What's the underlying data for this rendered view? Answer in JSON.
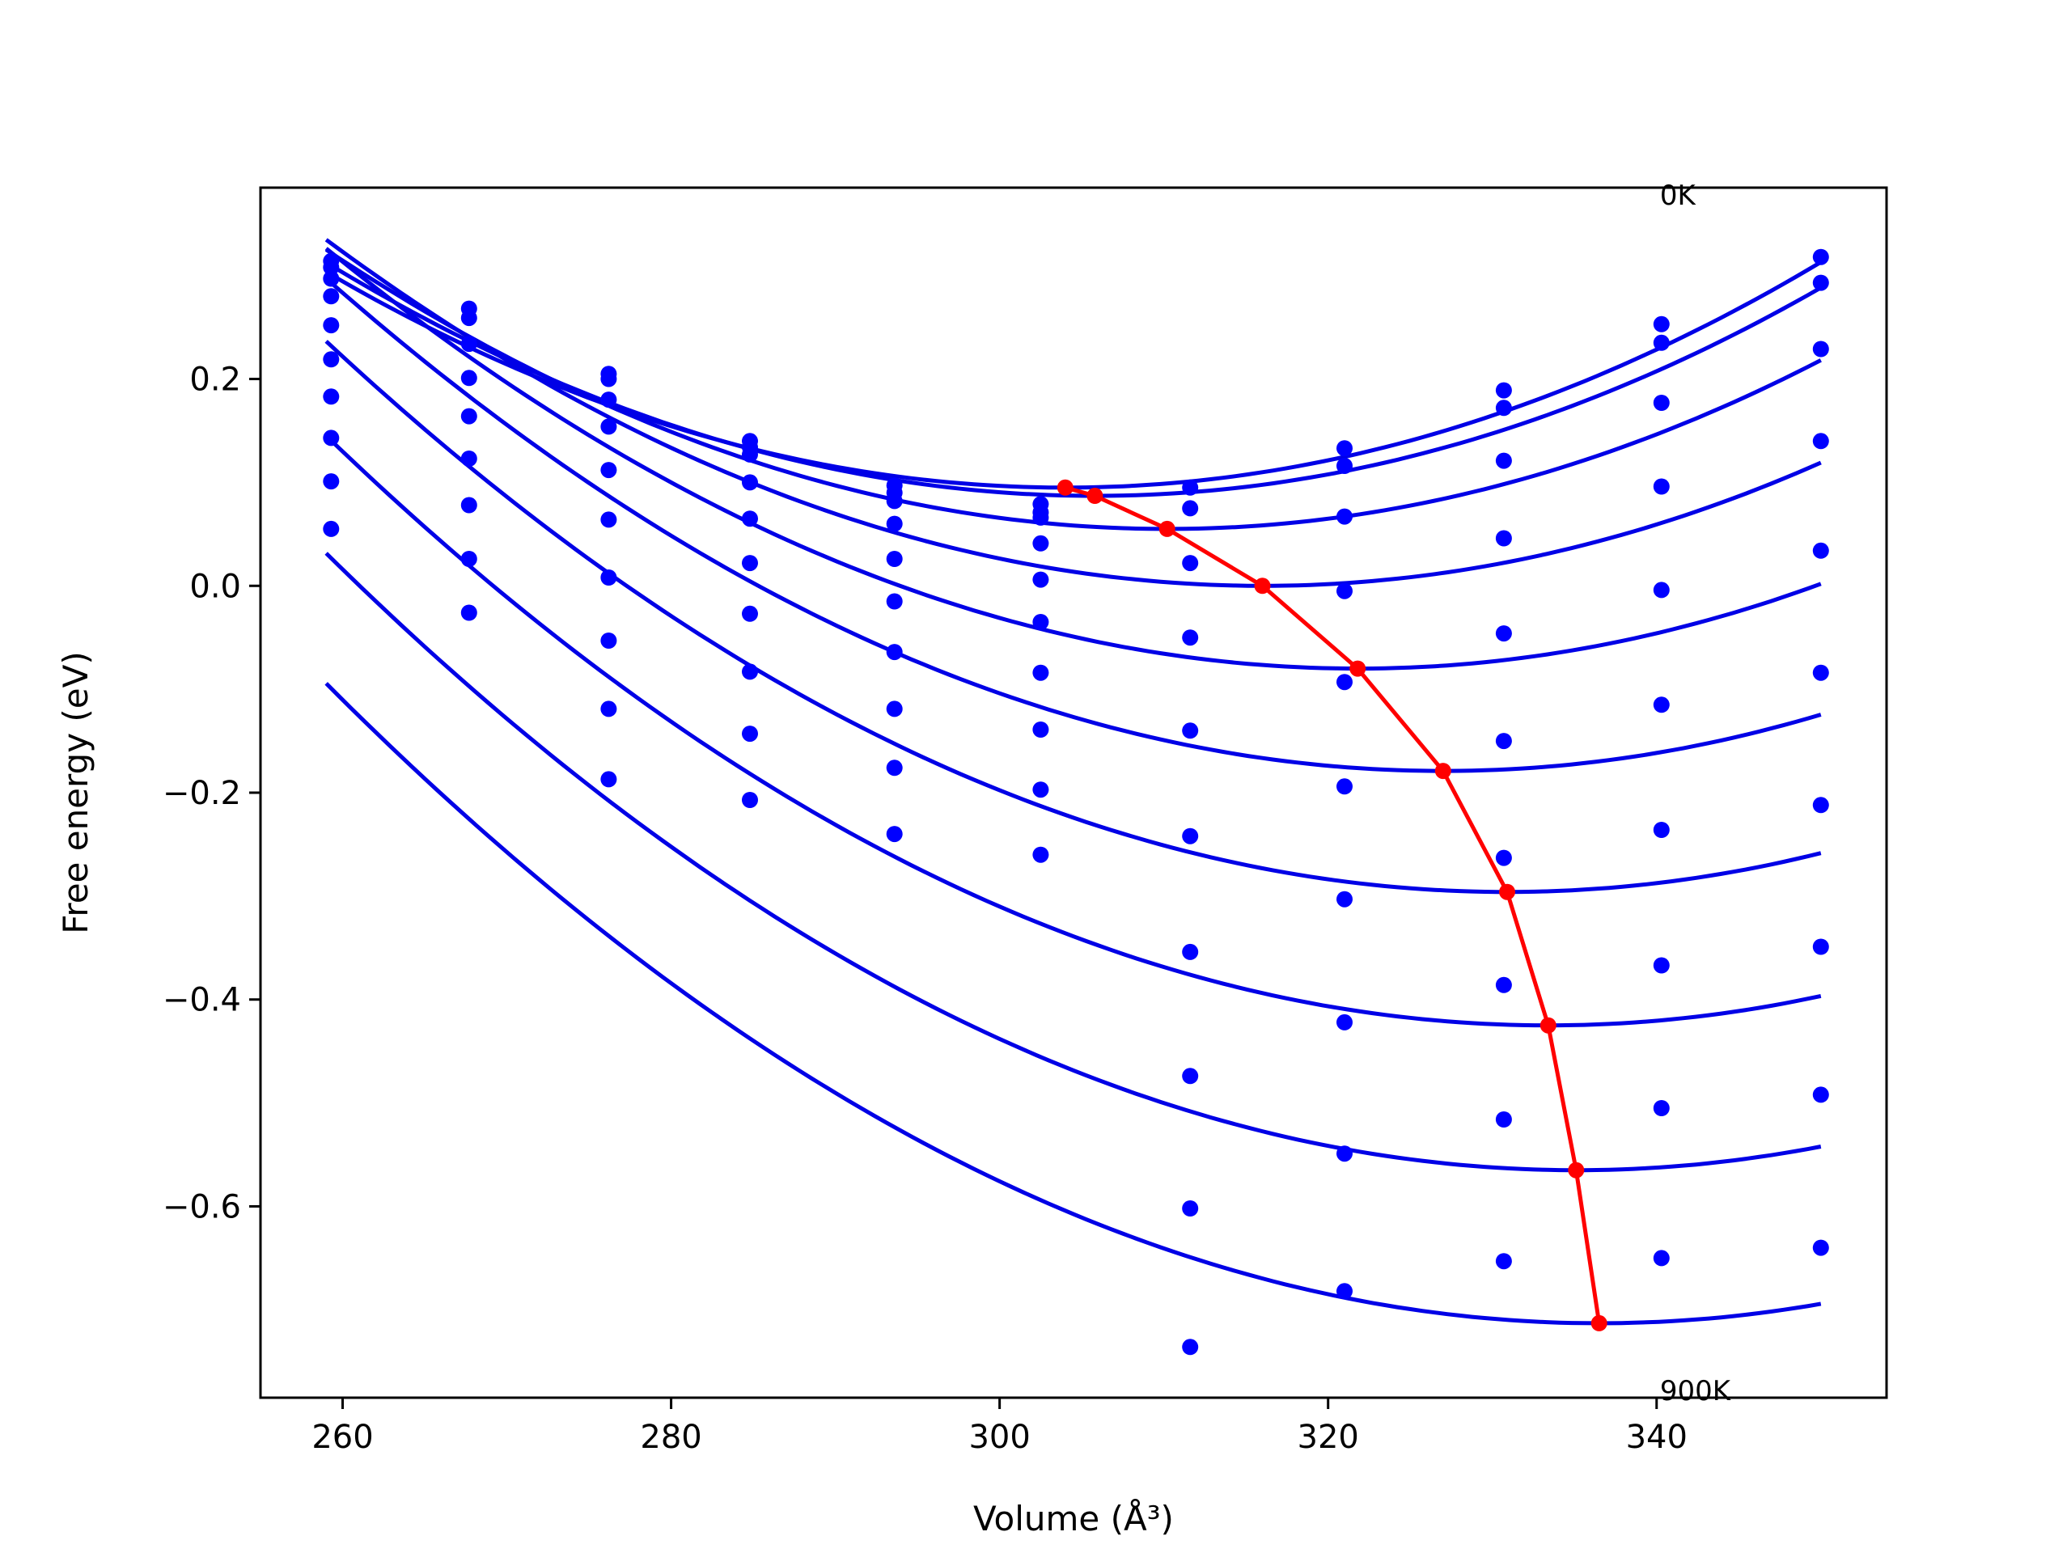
{
  "chart_data": {
    "type": "scatter",
    "xlabel": "Volume (Å³)",
    "ylabel": "Free energy (eV)",
    "xlim": [
      255,
      354
    ],
    "ylim": [
      -0.785,
      0.385
    ],
    "xticks": [
      260,
      280,
      300,
      320,
      340
    ],
    "yticks": [
      0.2,
      0.0,
      -0.2,
      -0.4,
      -0.6
    ],
    "xtick_labels": [
      "260",
      "280",
      "300",
      "320",
      "340"
    ],
    "ytick_labels": [
      "0.2",
      "0.0",
      "−0.2",
      "−0.4",
      "−0.6"
    ],
    "grid": false,
    "annotations": [
      {
        "text": "0K",
        "x": 340.2,
        "y": 0.378
      },
      {
        "text": "900K",
        "x": 340.2,
        "y": -0.778
      }
    ],
    "volumes": [
      259.3,
      267.7,
      276.2,
      284.8,
      293.6,
      302.5,
      311.6,
      321.0,
      330.7,
      340.3,
      350.0
    ],
    "series": [
      {
        "points": [
          0.314,
          0.268,
          0.205,
          0.14,
          0.097,
          0.079,
          0.095,
          0.133,
          0.189,
          0.253,
          0.318
        ],
        "fit": {
          "a": 0.000103,
          "vmin": 304.0,
          "emin": 0.095,
          "range": [
            259.0,
            350.0
          ]
        }
      },
      {
        "points": [
          0.308,
          0.259,
          0.2,
          0.134,
          0.09,
          0.071,
          0.075,
          0.116,
          0.172,
          0.235,
          0.293
        ],
        "fit": {
          "a": 0.000103,
          "vmin": 305.8,
          "emin": 0.087,
          "range": [
            259.0,
            350.0
          ]
        }
      },
      {
        "points": [
          0.297,
          0.234,
          0.18,
          0.127,
          0.082,
          0.066,
          0.022,
          0.067,
          0.121,
          0.177,
          0.229
        ],
        "fit": {
          "a": 0.000103,
          "vmin": 310.2,
          "emin": 0.055,
          "range": [
            259.0,
            350.0
          ]
        }
      },
      {
        "points": [
          0.28,
          0.201,
          0.154,
          0.1,
          0.06,
          0.041,
          -0.05,
          -0.005,
          0.046,
          0.096,
          0.14
        ],
        "fit": {
          "a": 0.000103,
          "vmin": 316.0,
          "emin": 0.0,
          "range": [
            259.0,
            350.0
          ]
        }
      },
      {
        "points": [
          0.252,
          0.164,
          0.112,
          0.065,
          0.026,
          0.006,
          -0.14,
          -0.093,
          -0.046,
          -0.004,
          0.034
        ],
        "fit": {
          "a": 0.000103,
          "vmin": 321.8,
          "emin": -0.08,
          "range": [
            259.0,
            350.0
          ]
        }
      },
      {
        "points": [
          0.219,
          0.123,
          0.064,
          0.022,
          -0.015,
          -0.035,
          -0.242,
          -0.194,
          -0.15,
          -0.115,
          -0.084
        ],
        "fit": {
          "a": 0.000103,
          "vmin": 327.0,
          "emin": -0.179,
          "range": [
            259.0,
            350.0
          ]
        }
      },
      {
        "points": [
          0.183,
          0.078,
          0.008,
          -0.027,
          -0.064,
          -0.084,
          -0.354,
          -0.303,
          -0.263,
          -0.236,
          -0.212
        ],
        "fit": {
          "a": 0.000103,
          "vmin": 330.9,
          "emin": -0.296,
          "range": [
            259.0,
            350.0
          ]
        }
      },
      {
        "points": [
          0.143,
          0.026,
          -0.053,
          -0.083,
          -0.119,
          -0.139,
          -0.474,
          -0.422,
          -0.386,
          -0.367,
          -0.349
        ],
        "fit": {
          "a": 0.000103,
          "vmin": 333.4,
          "emin": -0.425,
          "range": [
            259.0,
            350.0
          ]
        }
      },
      {
        "points": [
          0.101,
          -0.026,
          -0.119,
          -0.143,
          -0.176,
          -0.197,
          -0.602,
          -0.549,
          -0.516,
          -0.505,
          -0.492
        ],
        "fit": {
          "a": 0.000103,
          "vmin": 335.1,
          "emin": -0.565,
          "range": [
            259.0,
            350.0
          ]
        }
      },
      {
        "points": [
          0.055,
          null,
          -0.187,
          -0.207,
          -0.24,
          -0.26,
          -0.736,
          -0.682,
          -0.653,
          -0.65,
          -0.64
        ],
        "fit": {
          "a": 0.000103,
          "vmin": 336.5,
          "emin": -0.713,
          "range": [
            259.0,
            350.0
          ]
        }
      }
    ],
    "minima_path": {
      "x": [
        304.0,
        305.8,
        310.2,
        316.0,
        321.8,
        327.0,
        330.9,
        333.4,
        335.1,
        336.5
      ],
      "y": [
        0.095,
        0.087,
        0.055,
        0.0,
        -0.08,
        -0.179,
        -0.296,
        -0.425,
        -0.565,
        -0.713
      ]
    },
    "colors": {
      "curves": "#0000e6",
      "points": "#0000ff",
      "minima": "#ff0000",
      "axes": "#000000"
    }
  }
}
